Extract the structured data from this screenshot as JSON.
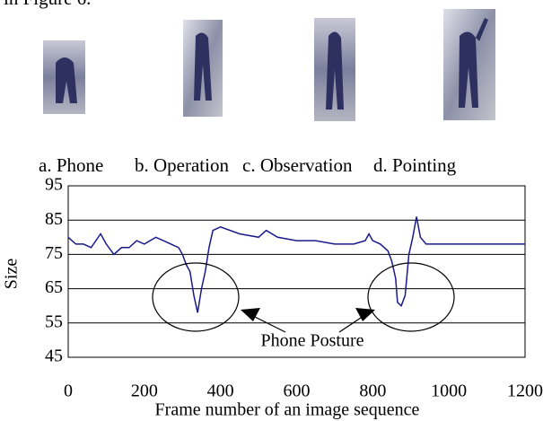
{
  "page_text": "in Figure 6.",
  "images": [
    {
      "caption": "a. Phone"
    },
    {
      "caption": "b. Operation"
    },
    {
      "caption": "c. Observation"
    },
    {
      "caption": "d. Pointing"
    }
  ],
  "chart_data": {
    "type": "line",
    "ylabel": "Size",
    "xlabel": "Frame number of an image sequence",
    "annotation": "Phone Posture",
    "color": "#1a1a8c",
    "grid": true,
    "x": [
      0,
      20,
      40,
      60,
      85,
      100,
      120,
      140,
      160,
      180,
      200,
      230,
      250,
      270,
      290,
      300,
      310,
      320,
      330,
      340,
      350,
      360,
      370,
      380,
      400,
      450,
      500,
      520,
      550,
      600,
      650,
      700,
      750,
      780,
      790,
      800,
      820,
      840,
      850,
      860,
      865,
      875,
      885,
      895,
      905,
      915,
      925,
      940,
      950,
      1000,
      1050,
      1100,
      1150,
      1200
    ],
    "values": [
      80,
      78,
      78,
      77,
      81,
      78,
      75,
      77,
      77,
      79,
      78,
      80,
      79,
      78,
      77,
      75,
      72,
      70,
      63,
      58,
      65,
      70,
      77,
      82,
      83,
      81,
      80,
      82,
      80,
      79,
      79,
      78,
      78,
      79,
      81,
      79,
      78,
      76,
      73,
      68,
      61,
      60,
      63,
      75,
      80,
      86,
      80,
      78,
      78,
      78,
      78,
      78,
      78,
      78
    ],
    "xlim": [
      0,
      1200
    ],
    "xticks": [
      0,
      200,
      400,
      600,
      800,
      1000,
      1200
    ],
    "ylim": [
      45,
      95
    ],
    "yticks": [
      45,
      55,
      65,
      75,
      85,
      95
    ]
  }
}
